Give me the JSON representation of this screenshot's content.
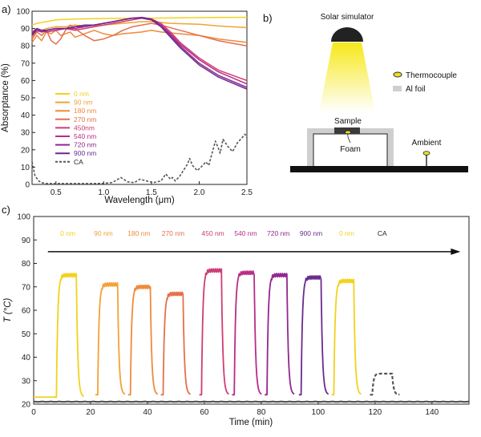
{
  "panels": {
    "a": "a)",
    "b": "b)",
    "c": "c)"
  },
  "colors": {
    "0": "#f2d21c",
    "90": "#f3a235",
    "180": "#ef8a3c",
    "270": "#e4704b",
    "450": "#cf3c75",
    "540": "#b82c87",
    "720": "#92278f",
    "900": "#6a2a8e",
    "ca": "#555555",
    "ambient": "#4d4d4d"
  },
  "chart_data": [
    {
      "id": "a",
      "type": "line",
      "title": "",
      "xlabel": "Wavelength (μm)",
      "ylabel": "Absorptance (%)",
      "xlim": [
        0.25,
        2.5
      ],
      "ylim": [
        0,
        100
      ],
      "xticks": [
        "0.5",
        "1.0",
        "1.5",
        "2.0",
        "2.5"
      ],
      "xtick_values": [
        0.5,
        1.0,
        1.5,
        2.0,
        2.5
      ],
      "yticks": [
        "0",
        "10",
        "20",
        "30",
        "40",
        "50",
        "60",
        "70",
        "80",
        "90",
        "100"
      ],
      "ytick_values": [
        0,
        10,
        20,
        30,
        40,
        50,
        60,
        70,
        80,
        90,
        100
      ],
      "legend_position": "lower-left",
      "series": [
        {
          "name": "0 nm",
          "key": "0",
          "dashed": false,
          "x": [
            0.25,
            0.3,
            0.4,
            0.5,
            0.7,
            1.0,
            1.3,
            1.5,
            1.8,
            2.0,
            2.2,
            2.5
          ],
          "y": [
            92,
            93,
            94,
            95,
            95.5,
            95.8,
            96,
            96,
            96.2,
            96.3,
            96.4,
            96.5
          ]
        },
        {
          "name": "90 nm",
          "key": "90",
          "dashed": false,
          "x": [
            0.25,
            0.3,
            0.4,
            0.5,
            0.6,
            0.7,
            0.8,
            1.0,
            1.2,
            1.4,
            1.5,
            1.7,
            2.0,
            2.2,
            2.5
          ],
          "y": [
            85,
            88,
            90,
            91,
            91,
            92,
            91.5,
            92,
            93,
            94,
            94,
            93,
            92.5,
            91.5,
            90.5
          ]
        },
        {
          "name": "180 nm",
          "key": "180",
          "dashed": false,
          "x": [
            0.25,
            0.3,
            0.35,
            0.4,
            0.45,
            0.5,
            0.55,
            0.6,
            0.65,
            0.7,
            0.8,
            0.9,
            1.0,
            1.1,
            1.2,
            1.4,
            1.5,
            1.6,
            1.8,
            2.0,
            2.2,
            2.5
          ],
          "y": [
            82,
            86,
            83,
            88,
            87,
            89,
            86,
            87,
            88,
            85,
            87,
            89,
            87,
            86,
            87,
            88,
            89,
            88,
            87,
            86,
            84,
            82
          ]
        },
        {
          "name": "270 nm",
          "key": "270",
          "dashed": false,
          "x": [
            0.25,
            0.3,
            0.35,
            0.4,
            0.45,
            0.5,
            0.55,
            0.6,
            0.65,
            0.7,
            0.8,
            0.9,
            1.0,
            1.1,
            1.2,
            1.3,
            1.4,
            1.5,
            1.6,
            1.8,
            2.0,
            2.2,
            2.5
          ],
          "y": [
            84,
            88,
            86,
            89,
            83,
            81,
            84,
            89,
            92,
            90,
            86,
            83,
            84,
            86,
            89,
            91,
            92,
            93,
            92,
            89,
            86,
            83,
            80
          ]
        },
        {
          "name": "450nm",
          "key": "450",
          "dashed": false,
          "x": [
            0.25,
            0.3,
            0.35,
            0.4,
            0.5,
            0.6,
            0.7,
            0.8,
            0.9,
            1.0,
            1.1,
            1.2,
            1.3,
            1.4,
            1.5,
            1.6,
            1.7,
            1.8,
            2.0,
            2.2,
            2.5
          ],
          "y": [
            88,
            90,
            88,
            89,
            90,
            90,
            89,
            90,
            91,
            92,
            93,
            94,
            95,
            96,
            95.5,
            93,
            88,
            82,
            73,
            66,
            60
          ]
        },
        {
          "name": "540 nm",
          "key": "540",
          "dashed": false,
          "x": [
            0.25,
            0.3,
            0.35,
            0.4,
            0.5,
            0.6,
            0.7,
            0.8,
            0.9,
            1.0,
            1.1,
            1.2,
            1.3,
            1.4,
            1.5,
            1.6,
            1.7,
            1.8,
            2.0,
            2.2,
            2.5
          ],
          "y": [
            87,
            90,
            89,
            88,
            89,
            90,
            90,
            91,
            92,
            93,
            94,
            95,
            96,
            96,
            95,
            92,
            87,
            81,
            72,
            65,
            58
          ]
        },
        {
          "name": "720 nm",
          "key": "720",
          "dashed": false,
          "x": [
            0.25,
            0.3,
            0.35,
            0.4,
            0.5,
            0.6,
            0.7,
            0.8,
            0.9,
            1.0,
            1.1,
            1.2,
            1.3,
            1.4,
            1.5,
            1.6,
            1.7,
            1.8,
            2.0,
            2.2,
            2.5
          ],
          "y": [
            86,
            89,
            88,
            89,
            90,
            90,
            91,
            91,
            92,
            93,
            94,
            95,
            96,
            96.5,
            95.5,
            92,
            86,
            80,
            70,
            63,
            56
          ]
        },
        {
          "name": "900 nm",
          "key": "900",
          "dashed": false,
          "x": [
            0.25,
            0.3,
            0.35,
            0.4,
            0.5,
            0.6,
            0.7,
            0.8,
            0.9,
            1.0,
            1.1,
            1.2,
            1.3,
            1.4,
            1.5,
            1.6,
            1.7,
            1.8,
            2.0,
            2.2,
            2.5
          ],
          "y": [
            87,
            90,
            89,
            89,
            90,
            90,
            91,
            92,
            92,
            93,
            94,
            95,
            96,
            96,
            95,
            91,
            85,
            79,
            69,
            62,
            55
          ]
        },
        {
          "name": "CA",
          "key": "ca",
          "dashed": true,
          "x": [
            0.25,
            0.28,
            0.32,
            0.35,
            0.4,
            0.5,
            0.7,
            0.9,
            1.0,
            1.08,
            1.12,
            1.18,
            1.25,
            1.32,
            1.38,
            1.45,
            1.52,
            1.6,
            1.65,
            1.7,
            1.72,
            1.75,
            1.8,
            1.88,
            1.9,
            1.93,
            1.98,
            2.02,
            2.07,
            2.1,
            2.13,
            2.17,
            2.2,
            2.22,
            2.25,
            2.3,
            2.35,
            2.4,
            2.45,
            2.48,
            2.5
          ],
          "y": [
            13,
            5,
            2,
            1,
            0.5,
            0.5,
            0.5,
            0.5,
            0.6,
            1,
            2,
            4,
            1.5,
            1,
            3,
            2,
            1,
            2,
            6,
            3,
            4,
            2,
            5,
            12,
            15,
            11,
            8,
            10,
            13,
            11,
            17,
            25,
            21,
            18,
            26,
            22,
            19,
            24,
            27,
            29,
            27
          ]
        }
      ]
    },
    {
      "id": "c",
      "type": "line",
      "title": "",
      "xlabel": "Time (min)",
      "ylabel": "T (°C)",
      "xlim": [
        0,
        153
      ],
      "ylim": [
        20,
        100
      ],
      "xticks": [
        "0",
        "20",
        "40",
        "60",
        "80",
        "100",
        "120",
        "140"
      ],
      "xtick_values": [
        0,
        20,
        40,
        60,
        80,
        100,
        120,
        140
      ],
      "yticks": [
        "20",
        "30",
        "40",
        "50",
        "60",
        "70",
        "80",
        "90",
        "100"
      ],
      "ytick_values": [
        20,
        30,
        40,
        50,
        60,
        70,
        80,
        90,
        100
      ],
      "cycles": [
        {
          "label": "0 nm",
          "key": "0",
          "on": 8.0,
          "off": 15.0,
          "max": 75,
          "base": 23,
          "label_t": 12,
          "dashed": false
        },
        {
          "label": "90 nm",
          "key": "90",
          "on": 22.5,
          "off": 29.5,
          "max": 71,
          "base": 24,
          "label_t": 24.5,
          "dashed": false
        },
        {
          "label": "180 nm",
          "key": "180",
          "on": 34.0,
          "off": 41.0,
          "max": 70,
          "base": 24,
          "label_t": 37,
          "dashed": false
        },
        {
          "label": "270 nm",
          "key": "270",
          "on": 45.5,
          "off": 52.5,
          "max": 67,
          "base": 24,
          "label_t": 49,
          "dashed": false
        },
        {
          "label": "450 nm",
          "key": "450",
          "on": 59.0,
          "off": 66.0,
          "max": 77,
          "base": 24,
          "label_t": 63,
          "dashed": false
        },
        {
          "label": "540 nm",
          "key": "540",
          "on": 70.5,
          "off": 77.5,
          "max": 76,
          "base": 24,
          "label_t": 74.5,
          "dashed": false
        },
        {
          "label": "720 nm",
          "key": "720",
          "on": 82.0,
          "off": 89.0,
          "max": 75,
          "base": 24,
          "label_t": 86,
          "dashed": false
        },
        {
          "label": "900 nm",
          "key": "900",
          "on": 94.0,
          "off": 101.0,
          "max": 74,
          "base": 24,
          "label_t": 97.5,
          "dashed": false
        },
        {
          "label": "0 nm",
          "key": "0",
          "on": 105.5,
          "off": 112.5,
          "max": 72.5,
          "base": 24,
          "label_t": 110,
          "dashed": false
        },
        {
          "label": "CA",
          "key": "ca",
          "on": 119.0,
          "off": 126.0,
          "max": 33,
          "base": 24,
          "label_t": 122.5,
          "dashed": true
        }
      ],
      "ambient_level": 21,
      "arrow": {
        "from": 5,
        "to": 150,
        "level": 85
      }
    }
  ],
  "diagram": {
    "solar_simulator": "Solar simulator",
    "thermocouple": "Thermocouple",
    "al_foil": "Al foil",
    "sample": "Sample",
    "foam": "Foam",
    "ambient": "Ambient"
  }
}
